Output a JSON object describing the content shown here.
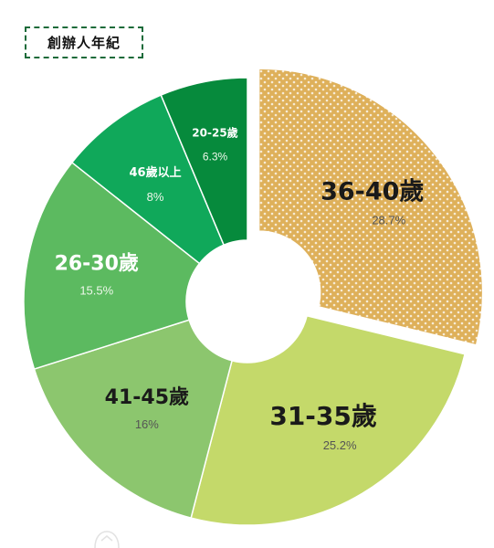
{
  "chart_data": {
    "type": "pie",
    "title": "創辦人年紀",
    "categories": [
      "36-40歲",
      "31-35歲",
      "41-45歲",
      "26-30歲",
      "46歲以上",
      "20-25歲"
    ],
    "values": [
      28.7,
      25.2,
      16,
      15.5,
      8,
      6.3
    ],
    "value_labels": [
      "28.7%",
      "25.2%",
      "16%",
      "15.5%",
      "8%",
      "6.3%"
    ],
    "colors": [
      "#deb05a",
      "#c4d96a",
      "#8cc66e",
      "#5cba60",
      "#10a85a",
      "#068a3c"
    ],
    "exploded": [
      "36-40歲"
    ],
    "donut": true
  }
}
